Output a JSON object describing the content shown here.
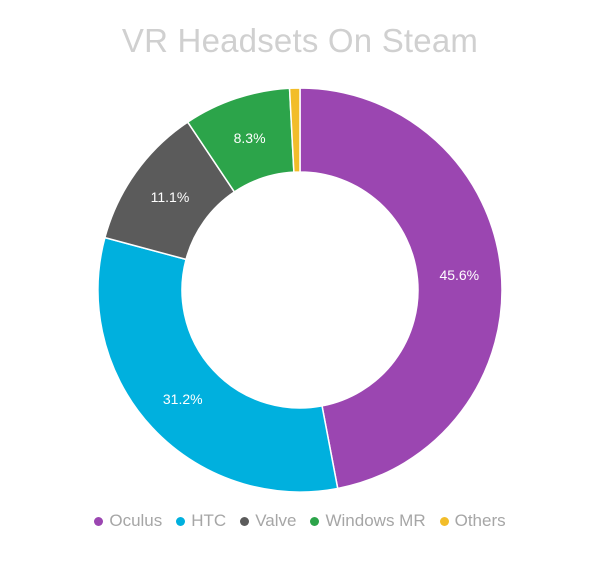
{
  "chart_data": {
    "type": "donut",
    "title": "VR Headsets On Steam",
    "legend_position": "bottom",
    "slices": [
      {
        "name": "Oculus",
        "value": 45.6,
        "label": "45.6%",
        "color": "#9b46b1"
      },
      {
        "name": "HTC",
        "value": 31.2,
        "label": "31.2%",
        "color": "#00b0de"
      },
      {
        "name": "Valve",
        "value": 11.1,
        "label": "11.1%",
        "color": "#5b5b5b"
      },
      {
        "name": "Windows MR",
        "value": 8.3,
        "label": "8.3%",
        "color": "#2ca44a"
      },
      {
        "name": "Others",
        "value": 0.8,
        "label": "",
        "color": "#f2bd2a"
      }
    ]
  }
}
